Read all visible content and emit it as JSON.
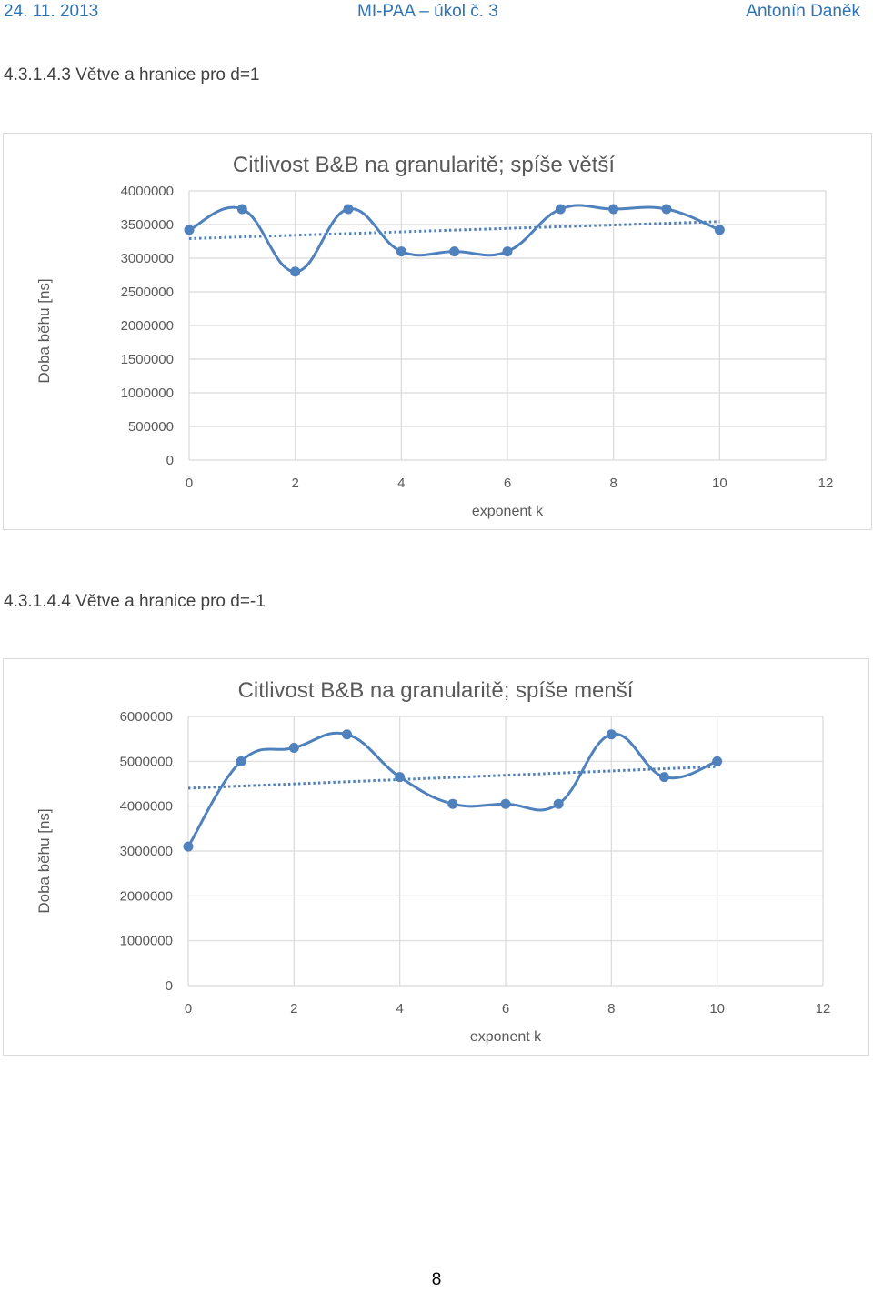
{
  "header": {
    "date": "24. 11. 2013",
    "course": "MI-PAA – úkol č. 3",
    "author": "Antonín Daněk"
  },
  "sections": [
    {
      "title": "4.3.1.4.3   Větve a hranice pro d=1"
    },
    {
      "title": "4.3.1.4.4   Větve a hranice pro d=-1"
    }
  ],
  "chart_data": [
    {
      "type": "line",
      "title": "Citlivost B&B na granularitě; spíše větší",
      "xlabel": "exponent  k",
      "ylabel": "Doba běhu [ns]",
      "xlim": [
        0,
        12
      ],
      "ylim": [
        0,
        4000000
      ],
      "xticks": [
        0,
        2,
        4,
        6,
        8,
        10,
        12
      ],
      "yticks": [
        0,
        500000,
        1000000,
        1500000,
        2000000,
        2500000,
        3000000,
        3500000,
        4000000
      ],
      "grid": "vertical and horizontal",
      "smooth": true,
      "trendline": "linear, dotted",
      "colors": {
        "series": "#4f81bd",
        "trend": "#4f81bd",
        "grid": "#d9d9d9"
      },
      "series": [
        {
          "x": [
            0,
            1,
            2,
            3,
            4,
            5,
            6,
            7,
            8,
            9,
            10
          ],
          "values": [
            3420000,
            3730000,
            2800000,
            3730000,
            3100000,
            3100000,
            3100000,
            3730000,
            3730000,
            3730000,
            3420000
          ]
        }
      ]
    },
    {
      "type": "line",
      "title": "Citlivost B&B na granularitě; spíše menší",
      "xlabel": "exponent  k",
      "ylabel": "Doba běhu [ns]",
      "xlim": [
        0,
        12
      ],
      "ylim": [
        0,
        6000000
      ],
      "xticks": [
        0,
        2,
        4,
        6,
        8,
        10,
        12
      ],
      "yticks": [
        0,
        1000000,
        2000000,
        3000000,
        4000000,
        5000000,
        6000000
      ],
      "grid": "vertical and horizontal",
      "smooth": true,
      "trendline": "linear, dotted",
      "colors": {
        "series": "#4f81bd",
        "trend": "#4f81bd",
        "grid": "#d9d9d9"
      },
      "series": [
        {
          "x": [
            0,
            1,
            2,
            3,
            4,
            5,
            6,
            7,
            8,
            9,
            10
          ],
          "values": [
            3100000,
            5000000,
            5300000,
            5600000,
            4650000,
            4050000,
            4050000,
            4050000,
            5600000,
            4650000,
            5000000
          ]
        }
      ]
    }
  ],
  "footer": {
    "page_number": "8"
  }
}
